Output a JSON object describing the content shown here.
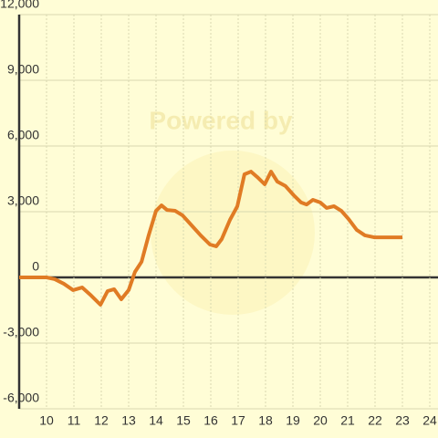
{
  "chart_data": {
    "type": "line",
    "watermark": "Powered by",
    "x": [
      9,
      10,
      10.3,
      10.63,
      10.97,
      11.3,
      11.63,
      11.97,
      12.23,
      12.47,
      12.73,
      13.0,
      13.23,
      13.47,
      13.73,
      14.0,
      14.2,
      14.4,
      14.7,
      14.97,
      15.3,
      15.63,
      15.97,
      16.2,
      16.4,
      16.7,
      16.97,
      17.23,
      17.47,
      17.7,
      17.97,
      18.2,
      18.43,
      18.73,
      19.03,
      19.3,
      19.5,
      19.73,
      20.0,
      20.23,
      20.5,
      20.77,
      21.03,
      21.33,
      21.63,
      21.97,
      23.0
    ],
    "series": [
      {
        "color": "#e07b24",
        "values": [
          0,
          0,
          -80,
          -290,
          -580,
          -460,
          -830,
          -1250,
          -625,
          -540,
          -1000,
          -580,
          250,
          710,
          1920,
          3040,
          3290,
          3080,
          3040,
          2830,
          2375,
          1920,
          1500,
          1420,
          1750,
          2625,
          3250,
          4710,
          4830,
          4580,
          4250,
          4830,
          4375,
          4170,
          3750,
          3420,
          3330,
          3540,
          3420,
          3170,
          3250,
          3040,
          2670,
          2170,
          1920,
          1830,
          1830
        ]
      }
    ],
    "xlim": [
      9,
      24.3
    ],
    "xticks": [
      10,
      11,
      12,
      13,
      14,
      15,
      16,
      17,
      18,
      19,
      20,
      21,
      22,
      23,
      24
    ],
    "ylim": [
      -6000,
      12000
    ],
    "yticks": [
      {
        "value": -6000,
        "label": "-6,000"
      },
      {
        "value": -3000,
        "label": "-3,000"
      },
      0,
      {
        "value": 3000,
        "label": "3,000"
      },
      {
        "value": 6000,
        "label": "6,000"
      },
      {
        "value": 9000,
        "label": "9,000"
      },
      {
        "value": 12000,
        "label": "12,000"
      }
    ],
    "grid": true
  }
}
